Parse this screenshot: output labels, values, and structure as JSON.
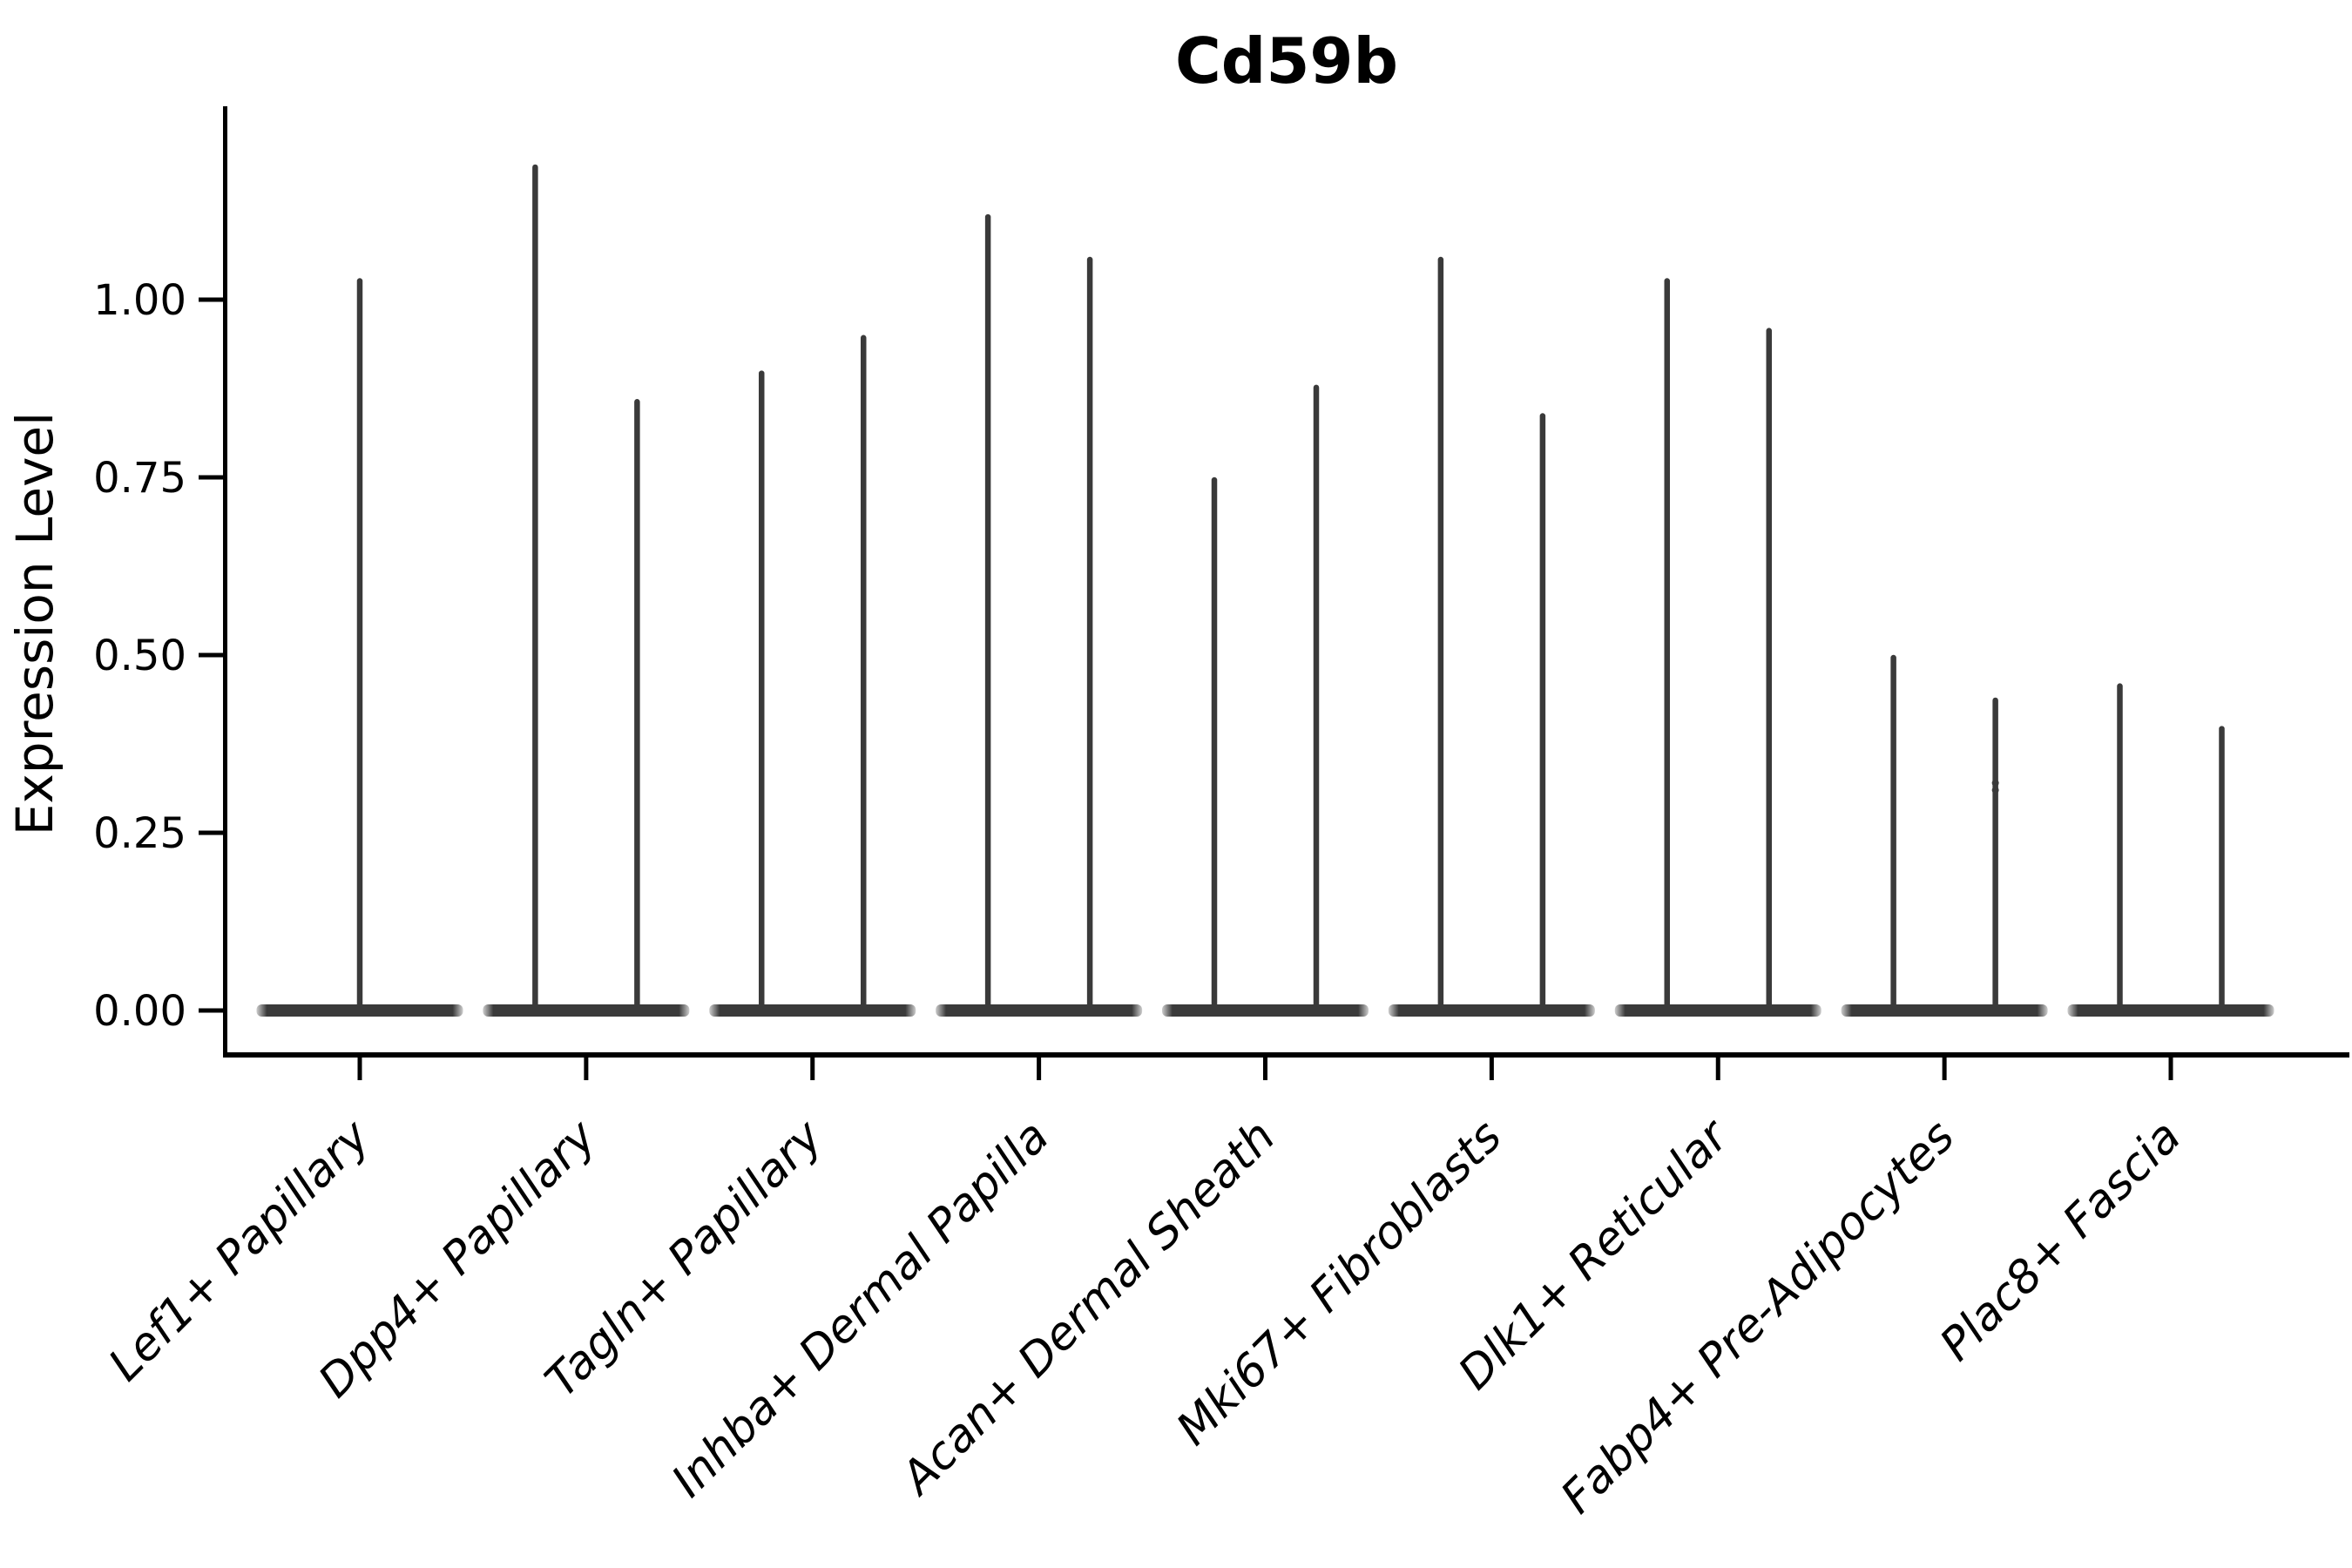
{
  "figure": {
    "title": "Cd59b"
  },
  "chart_data": {
    "type": "violin",
    "title": "Cd59b",
    "xlabel": "",
    "ylabel": "Expression Level",
    "legend_position": "none",
    "grid": false,
    "ylim": [
      -0.059,
      1.273
    ],
    "ytick_labels": [
      "1.00",
      "0.75",
      "0.50",
      "0.25",
      "0.00"
    ],
    "ytick_values": [
      1.0,
      0.75,
      0.5,
      0.25,
      0.0
    ],
    "categories": [
      "Lef1+ Papillary",
      "Dpp4+ Papillary",
      "Tagln+ Papillary",
      "Inhba+ Dermal Papilla",
      "Acan+ Dermal Sheath",
      "Mki67+ Fibroblasts",
      "Dlk1+ Reticular",
      "Fabp4+ Pre-Adipocytes",
      "Plac8+ Fascia"
    ],
    "violins": [
      {
        "category_index": 0,
        "category": "Lef1+ Papillary",
        "side": "center",
        "min": 0.0,
        "max": 1.03
      },
      {
        "category_index": 1,
        "category": "Dpp4+ Papillary",
        "side": "left",
        "min": 0.0,
        "max": 1.19
      },
      {
        "category_index": 1,
        "category": "Dpp4+ Papillary",
        "side": "right",
        "min": 0.0,
        "max": 0.86
      },
      {
        "category_index": 2,
        "category": "Tagln+ Papillary",
        "side": "left",
        "min": 0.0,
        "max": 0.9
      },
      {
        "category_index": 2,
        "category": "Tagln+ Papillary",
        "side": "right",
        "min": 0.0,
        "max": 0.95
      },
      {
        "category_index": 3,
        "category": "Inhba+ Dermal Papilla",
        "side": "left",
        "min": 0.0,
        "max": 1.12
      },
      {
        "category_index": 3,
        "category": "Inhba+ Dermal Papilla",
        "side": "right",
        "min": 0.0,
        "max": 1.06
      },
      {
        "category_index": 4,
        "category": "Acan+ Dermal Sheath",
        "side": "left",
        "min": 0.0,
        "max": 0.75
      },
      {
        "category_index": 4,
        "category": "Acan+ Dermal Sheath",
        "side": "right",
        "min": 0.0,
        "max": 0.88
      },
      {
        "category_index": 5,
        "category": "Mki67+ Fibroblasts",
        "side": "left",
        "min": 0.0,
        "max": 1.06
      },
      {
        "category_index": 5,
        "category": "Mki67+ Fibroblasts",
        "side": "right",
        "min": 0.0,
        "max": 0.84
      },
      {
        "category_index": 6,
        "category": "Dlk1+ Reticular",
        "side": "left",
        "min": 0.0,
        "max": 1.03
      },
      {
        "category_index": 6,
        "category": "Dlk1+ Reticular",
        "side": "right",
        "min": 0.0,
        "max": 0.96
      },
      {
        "category_index": 7,
        "category": "Fabp4+ Pre-Adipocytes",
        "side": "left",
        "min": 0.0,
        "max": 0.5
      },
      {
        "category_index": 7,
        "category": "Fabp4+ Pre-Adipocytes",
        "side": "right",
        "min": 0.0,
        "max": 0.44
      },
      {
        "category_index": 8,
        "category": "Plac8+ Fascia",
        "side": "left",
        "min": 0.0,
        "max": 0.46
      },
      {
        "category_index": 8,
        "category": "Plac8+ Fascia",
        "side": "right",
        "min": 0.0,
        "max": 0.4
      }
    ],
    "jitter_points": [
      {
        "category_index": 7,
        "side": "right",
        "values": [
          0.32,
          0.31
        ]
      }
    ],
    "violin_color": "#3a3a3a",
    "axis_color": "#000000"
  }
}
